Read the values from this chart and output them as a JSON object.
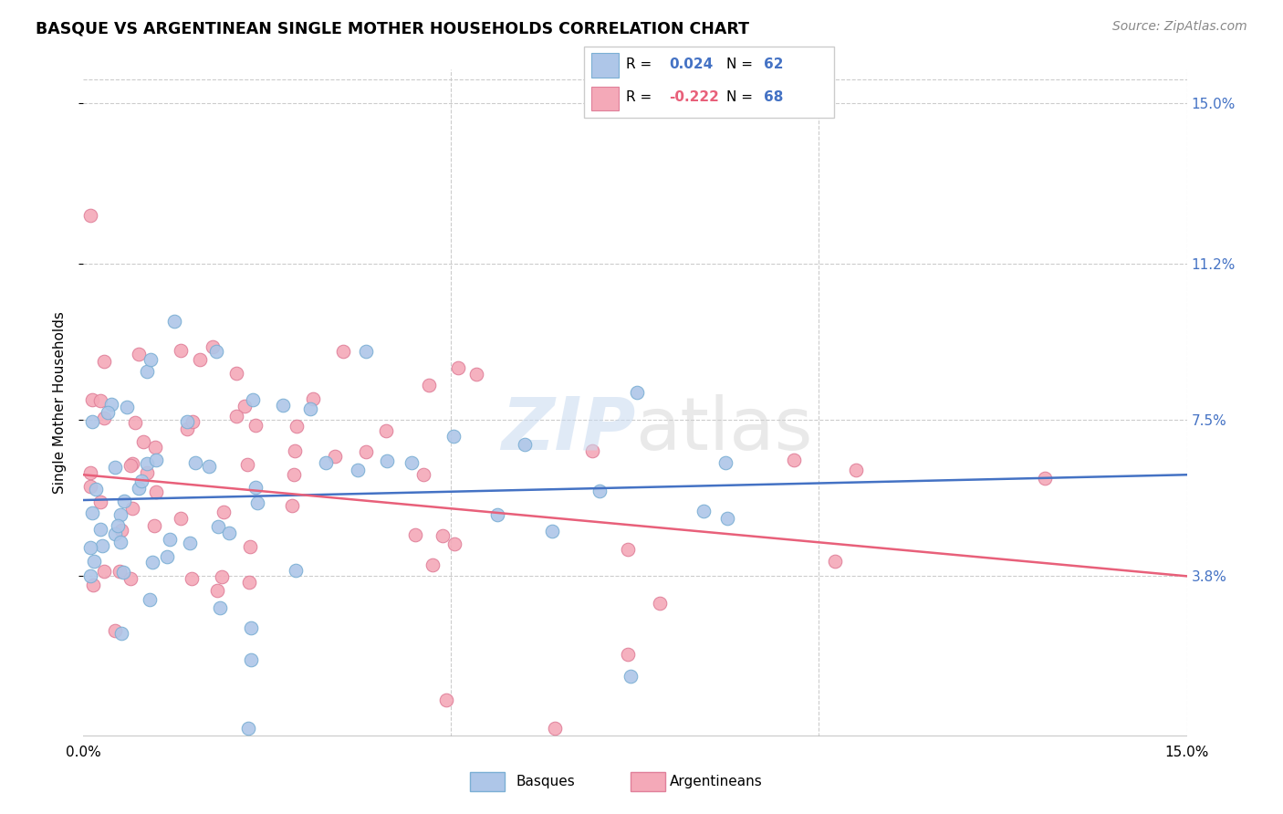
{
  "title": "BASQUE VS ARGENTINEAN SINGLE MOTHER HOUSEHOLDS CORRELATION CHART",
  "source": "Source: ZipAtlas.com",
  "ylabel": "Single Mother Households",
  "ytick_labels": [
    "15.0%",
    "11.2%",
    "7.5%",
    "3.8%"
  ],
  "ytick_values": [
    0.15,
    0.112,
    0.075,
    0.038
  ],
  "xmin": 0.0,
  "xmax": 0.15,
  "ymin": 0.0,
  "ymax": 0.158,
  "basque_color": "#aec6e8",
  "basque_edgecolor": "#7bafd4",
  "argentinean_color": "#f4a9b8",
  "argentinean_edgecolor": "#e0809a",
  "trend_basque_color": "#4472c4",
  "trend_argentinean_color": "#e8607a",
  "legend_r1_color": "#4472c4",
  "legend_r2_color": "#e8607a",
  "legend_n_color": "#4472c4",
  "basque_R": 0.024,
  "basque_N": 62,
  "argentinean_R": -0.222,
  "argentinean_N": 68,
  "trend_basque_y0": 0.056,
  "trend_basque_y1": 0.062,
  "trend_arg_y0": 0.062,
  "trend_arg_y1": 0.038,
  "watermark_zip_color": "#c8daf0",
  "watermark_atlas_color": "#d0d0d0",
  "grid_color": "#cccccc",
  "border_color": "#bbbbbb"
}
